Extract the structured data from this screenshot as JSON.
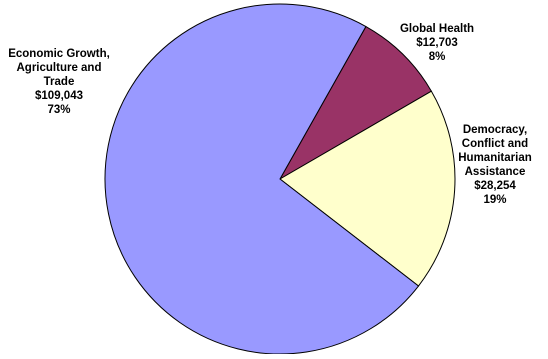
{
  "chart_data": {
    "type": "pie",
    "title": "",
    "slices": [
      {
        "label_lines": [
          "Global Health"
        ],
        "amount": "$12,703",
        "percent_label": "8%",
        "value": 12703,
        "color": "#993366"
      },
      {
        "label_lines": [
          "Democracy,",
          "Conflict and",
          "Humanitarian",
          "Assistance"
        ],
        "amount": "$28,254",
        "percent_label": "19%",
        "value": 28254,
        "color": "#ffffcc"
      },
      {
        "label_lines": [
          "Economic Growth,",
          "Agriculture and",
          "Trade"
        ],
        "amount": "$109,043",
        "percent_label": "73%",
        "value": 109043,
        "color": "#9999ff"
      }
    ],
    "start_angle_deg": 29.4,
    "direction": "clockwise",
    "legend": "none",
    "outline_color": "#000000"
  }
}
